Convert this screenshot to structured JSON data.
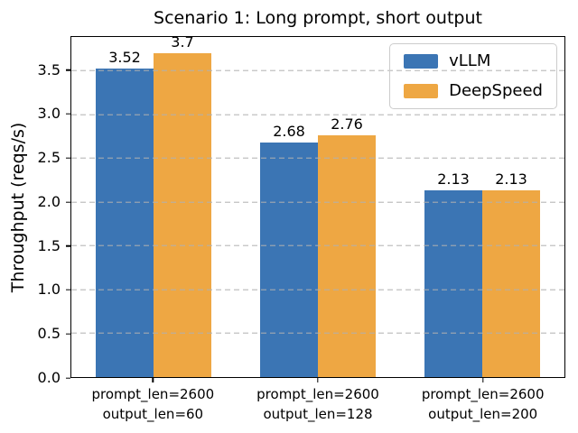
{
  "chart_data": {
    "type": "bar",
    "title": "Scenario 1: Long prompt, short output",
    "ylabel": "Throughput (reqs/s)",
    "xlabel": "",
    "categories": [
      [
        "prompt_len=2600",
        "output_len=60"
      ],
      [
        "prompt_len=2600",
        "output_len=128"
      ],
      [
        "prompt_len=2600",
        "output_len=200"
      ]
    ],
    "series": [
      {
        "name": "vLLM",
        "color": "#3b75b4",
        "values": [
          3.52,
          2.68,
          2.13
        ],
        "labels": [
          "3.52",
          "2.68",
          "2.13"
        ]
      },
      {
        "name": "DeepSpeed",
        "color": "#eea743",
        "values": [
          3.7,
          2.76,
          2.13
        ],
        "labels": [
          "3.7",
          "2.76",
          "2.13"
        ]
      }
    ],
    "yticks": [
      0.0,
      0.5,
      1.0,
      1.5,
      2.0,
      2.5,
      3.0,
      3.5
    ],
    "ytick_labels": [
      "0.0",
      "0.5",
      "1.0",
      "1.5",
      "2.0",
      "2.5",
      "3.0",
      "3.5"
    ],
    "ylim": [
      0,
      3.885
    ],
    "grid": {
      "axis": "y",
      "style": "dashed",
      "color": "#b0b0b0",
      "over_bars": true
    },
    "legend": {
      "position": "upper right",
      "frame_color": "#cccccc"
    },
    "colors": {
      "spine": "#000000",
      "text": "#000000",
      "background": "#ffffff"
    }
  }
}
